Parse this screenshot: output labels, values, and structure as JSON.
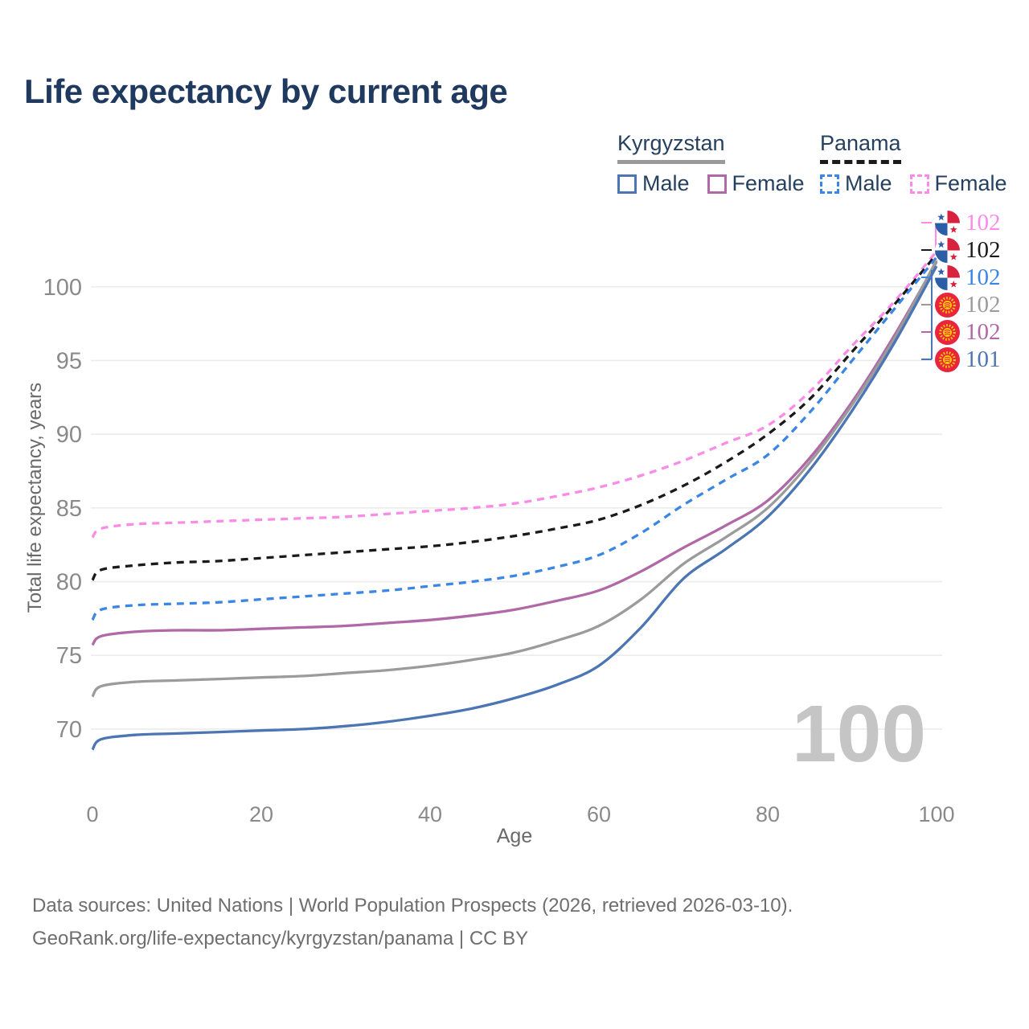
{
  "title": "Life expectancy by current age",
  "legend": {
    "groups": [
      {
        "label": "Kyrgyzstan",
        "line_style": "solid",
        "underline_color": "#9a9a9a",
        "items": [
          {
            "label": "Male",
            "color": "#4b76b3"
          },
          {
            "label": "Female",
            "color": "#b068a6"
          }
        ]
      },
      {
        "label": "Panama",
        "line_style": "dashed",
        "underline_color": "#1a1a1a",
        "items": [
          {
            "label": "Male",
            "color": "#3c86e3"
          },
          {
            "label": "Female",
            "color": "#fa8ce8"
          }
        ]
      }
    ]
  },
  "watermark_age": "100",
  "end_labels": [
    {
      "series": "Panama Female",
      "flag": "panama",
      "value": "102",
      "color": "#fa8ce8"
    },
    {
      "series": "Panama",
      "flag": "panama",
      "value": "102",
      "color": "#1a1a1a"
    },
    {
      "series": "Panama Male",
      "flag": "panama",
      "value": "102",
      "color": "#3c86e3"
    },
    {
      "series": "Kyrgyzstan",
      "flag": "kyrgyzstan",
      "value": "102",
      "color": "#9b9b9b"
    },
    {
      "series": "Kyrgyzstan Female",
      "flag": "kyrgyzstan",
      "value": "102",
      "color": "#b068a6"
    },
    {
      "series": "Kyrgyzstan Male",
      "flag": "kyrgyzstan",
      "value": "101",
      "color": "#4b76b3"
    }
  ],
  "footer": {
    "line1": "Data sources: United Nations | World Population Prospects (2026, retrieved 2026-03-10).",
    "line2": "GeoRank.org/life-expectancy/kyrgyzstan/panama | CC BY"
  },
  "chart_data": {
    "type": "line",
    "title": "Life expectancy by current age",
    "xlabel": "Age",
    "ylabel": "Total life expectancy, years",
    "xlim": [
      0,
      100
    ],
    "ylim": [
      67,
      103
    ],
    "x_ticks": [
      0,
      20,
      40,
      60,
      80,
      100
    ],
    "y_ticks": [
      70,
      75,
      80,
      85,
      90,
      95,
      100
    ],
    "grid": "horizontal",
    "legend_position": "top-right",
    "x": [
      0,
      1,
      5,
      10,
      15,
      20,
      25,
      30,
      35,
      40,
      45,
      50,
      55,
      60,
      65,
      70,
      75,
      80,
      85,
      90,
      95,
      100
    ],
    "series": [
      {
        "name": "Panama Female",
        "country": "Panama",
        "sex": "Female",
        "color": "#fa8ce8",
        "line_style": "dashed",
        "values": [
          83.0,
          83.6,
          83.9,
          84.0,
          84.1,
          84.2,
          84.3,
          84.4,
          84.6,
          84.8,
          85.0,
          85.3,
          85.8,
          86.4,
          87.2,
          88.2,
          89.4,
          90.6,
          92.9,
          96.0,
          99.0,
          102.4
        ]
      },
      {
        "name": "Panama",
        "country": "Panama",
        "sex": "All",
        "color": "#1a1a1a",
        "line_style": "dashed",
        "values": [
          80.1,
          80.8,
          81.1,
          81.3,
          81.4,
          81.6,
          81.8,
          82.0,
          82.2,
          82.4,
          82.7,
          83.1,
          83.6,
          84.2,
          85.2,
          86.5,
          88.1,
          90.0,
          92.4,
          95.6,
          98.8,
          102.2
        ]
      },
      {
        "name": "Panama Male",
        "country": "Panama",
        "sex": "Male",
        "color": "#3c86e3",
        "line_style": "dashed",
        "values": [
          77.4,
          78.1,
          78.4,
          78.5,
          78.6,
          78.8,
          79.0,
          79.2,
          79.4,
          79.7,
          80.0,
          80.4,
          81.0,
          81.8,
          83.3,
          85.2,
          86.9,
          88.6,
          91.5,
          95.0,
          98.5,
          102.0
        ]
      },
      {
        "name": "Kyrgyzstan Female",
        "country": "Kyrgyzstan",
        "sex": "Female",
        "color": "#b068a6",
        "line_style": "solid",
        "values": [
          75.7,
          76.3,
          76.6,
          76.7,
          76.7,
          76.8,
          76.9,
          77.0,
          77.2,
          77.4,
          77.7,
          78.1,
          78.7,
          79.4,
          80.7,
          82.3,
          83.8,
          85.5,
          88.4,
          92.2,
          96.7,
          101.7
        ]
      },
      {
        "name": "Kyrgyzstan",
        "country": "Kyrgyzstan",
        "sex": "All",
        "color": "#9b9b9b",
        "line_style": "solid",
        "values": [
          72.2,
          72.9,
          73.2,
          73.3,
          73.4,
          73.5,
          73.6,
          73.8,
          74.0,
          74.3,
          74.7,
          75.2,
          76.0,
          77.0,
          78.8,
          81.2,
          83.0,
          85.0,
          88.1,
          92.0,
          96.5,
          101.8
        ]
      },
      {
        "name": "Kyrgyzstan Male",
        "country": "Kyrgyzstan",
        "sex": "Male",
        "color": "#4b76b3",
        "line_style": "solid",
        "values": [
          68.6,
          69.3,
          69.6,
          69.7,
          69.8,
          69.9,
          70.0,
          70.2,
          70.5,
          70.9,
          71.4,
          72.1,
          73.0,
          74.3,
          76.9,
          80.2,
          82.2,
          84.4,
          87.6,
          91.6,
          96.2,
          101.4
        ]
      }
    ]
  }
}
